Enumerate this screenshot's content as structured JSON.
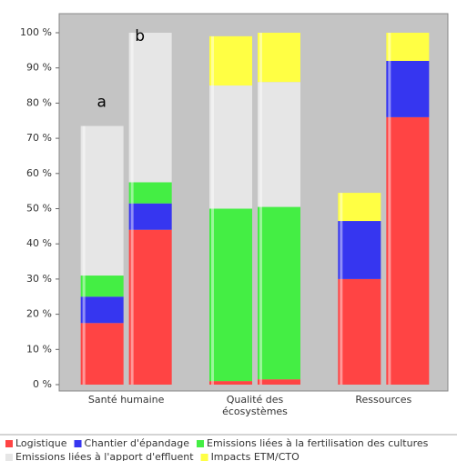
{
  "chart_data": {
    "type": "grouped-stacked-bar",
    "categories": [
      "Santé humaine",
      "Qualité des écosystèmes",
      "Ressources"
    ],
    "annotations": [
      "a",
      "b"
    ],
    "series": [
      {
        "name": "Logistique",
        "color": "#ff4444",
        "values": [
          [
            17.5,
            44
          ],
          [
            1,
            1.5
          ],
          [
            30,
            76
          ]
        ]
      },
      {
        "name": "Chantier d'épandage",
        "color": "#3636f0",
        "values": [
          [
            7.5,
            7.5
          ],
          [
            0,
            0
          ],
          [
            16.5,
            16
          ]
        ]
      },
      {
        "name": "Emissions liées à la fertilisation des cultures",
        "color": "#44ee44",
        "values": [
          [
            6,
            6
          ],
          [
            49,
            49
          ],
          [
            0,
            0
          ]
        ]
      },
      {
        "name": "Emissions liées à l'apport d'effluent",
        "color": "#e6e6e6",
        "values": [
          [
            42.5,
            42.5
          ],
          [
            35,
            35.5
          ],
          [
            0,
            0
          ]
        ]
      },
      {
        "name": "Impacts ETM/CTO",
        "color": "#ffff44",
        "values": [
          [
            0,
            0
          ],
          [
            14,
            14
          ],
          [
            8,
            8
          ]
        ]
      }
    ],
    "ylim": [
      0,
      100
    ],
    "yticks": [
      {
        "value": 0,
        "label": "0 %"
      },
      {
        "value": 10,
        "label": "10 %"
      },
      {
        "value": 20,
        "label": "20 %"
      },
      {
        "value": 30,
        "label": "30 %"
      },
      {
        "value": 40,
        "label": "40 %"
      },
      {
        "value": 50,
        "label": "50 %"
      },
      {
        "value": 60,
        "label": "60 %"
      },
      {
        "value": 70,
        "label": "70 %"
      },
      {
        "value": 80,
        "label": "80 %"
      },
      {
        "value": 90,
        "label": "90 %"
      },
      {
        "value": 100,
        "label": "100 %"
      }
    ]
  }
}
